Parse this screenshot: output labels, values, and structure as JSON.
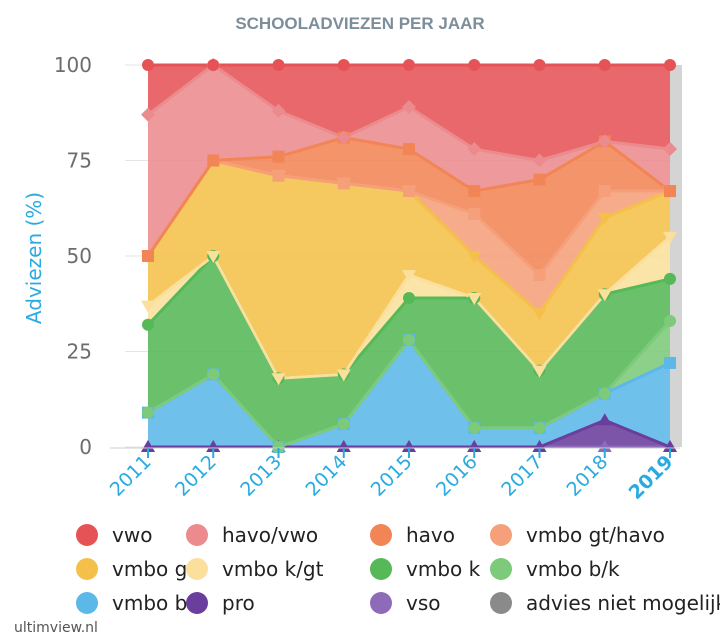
{
  "chart_data": {
    "type": "area",
    "title": "SCHOOLADVIEZEN PER JAAR",
    "ylabel": "Adviezen (%)",
    "xlabel": "",
    "x": [
      "2011",
      "2012",
      "2013",
      "2014",
      "2015",
      "2016",
      "2017",
      "2018",
      "2019"
    ],
    "highlight_x": "2019",
    "ylim": [
      0,
      100
    ],
    "yticks": [
      "0",
      "25",
      "50",
      "75",
      "100"
    ],
    "stacked_cumulative": true,
    "series": [
      {
        "name": "vso",
        "color": "#8e6bb8",
        "values": [
          0,
          0,
          0,
          0,
          0,
          0,
          0,
          0,
          0
        ]
      },
      {
        "name": "pro",
        "color": "#6a3e9c",
        "values": [
          0,
          0,
          0,
          0,
          0,
          0,
          0,
          7,
          0
        ]
      },
      {
        "name": "vmbo b",
        "color": "#5bb8e8",
        "values": [
          9,
          19,
          0,
          6,
          28,
          5,
          5,
          14,
          22
        ]
      },
      {
        "name": "vmbo b/k",
        "color": "#7cca7a",
        "values": [
          9,
          19,
          0,
          6,
          28,
          5,
          5,
          14,
          33
        ]
      },
      {
        "name": "vmbo k",
        "color": "#56b856",
        "values": [
          32,
          50,
          18,
          19,
          39,
          39,
          20,
          40,
          44
        ]
      },
      {
        "name": "vmbo k/gt",
        "color": "#fae09c",
        "values": [
          37,
          50,
          18,
          19,
          45,
          39,
          20,
          40,
          55
        ]
      },
      {
        "name": "vmbo gt",
        "color": "#f5c04a",
        "values": [
          50,
          75,
          71,
          69,
          67,
          50,
          35,
          60,
          67
        ]
      },
      {
        "name": "vmbo gt/havo",
        "color": "#f5a07a",
        "values": [
          50,
          75,
          71,
          69,
          67,
          61,
          45,
          67,
          67
        ]
      },
      {
        "name": "havo",
        "color": "#f28556",
        "values": [
          50,
          75,
          76,
          81,
          78,
          67,
          70,
          80,
          67
        ]
      },
      {
        "name": "havo/vwo",
        "color": "#ec8b8d",
        "values": [
          87,
          100,
          88,
          81,
          89,
          78,
          75,
          80,
          78
        ]
      },
      {
        "name": "vwo",
        "color": "#e55357",
        "values": [
          100,
          100,
          100,
          100,
          100,
          100,
          100,
          100,
          100
        ]
      },
      {
        "name": "advies niet mogelijk",
        "color": "#8a8a8a",
        "values": [
          100,
          100,
          100,
          100,
          100,
          100,
          100,
          100,
          100
        ]
      }
    ],
    "legend_order": [
      "vwo",
      "havo/vwo",
      "havo",
      "vmbo gt/havo",
      "vmbo gt",
      "vmbo k/gt",
      "vmbo k",
      "vmbo b/k",
      "vmbo b",
      "pro",
      "vso",
      "advies niet mogelijk"
    ],
    "legend_placement": "bottom",
    "grid": true
  },
  "credit": "ultimview.nl"
}
